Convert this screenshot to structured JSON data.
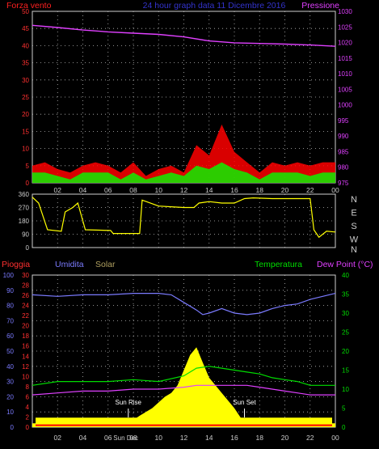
{
  "chart_data": [
    {
      "type": "line",
      "title": "24 hour graph data  11 Dicembre 2016",
      "left_axis_label": "Forza vento",
      "right_axis_label": "Pressione",
      "left_ticks": [
        "0",
        "5",
        "10",
        "15",
        "20",
        "25",
        "30",
        "35",
        "40",
        "45",
        "50"
      ],
      "right_ticks": [
        "975",
        "980",
        "985",
        "990",
        "995",
        "1000",
        "1005",
        "1010",
        "1015",
        "1020",
        "1025",
        "1030"
      ],
      "ylim_left": [
        0,
        50
      ],
      "ylim_right": [
        975,
        1030
      ],
      "x_ticks": [
        "02",
        "04",
        "06",
        "08",
        "10",
        "12",
        "14",
        "16",
        "18",
        "20",
        "22",
        "00"
      ],
      "series": [
        {
          "name": "Pressione",
          "color": "#e040ff",
          "x": [
            0,
            2,
            4,
            6,
            8,
            10,
            12,
            14,
            16,
            18,
            20,
            22,
            24
          ],
          "values": [
            1025.5,
            1024.8,
            1024.0,
            1023.4,
            1023.0,
            1022.6,
            1021.8,
            1020.5,
            1019.9,
            1019.7,
            1019.5,
            1019.2,
            1018.8
          ]
        },
        {
          "color": "#ff0000",
          "x": [
            0,
            1,
            2,
            3,
            4,
            5,
            6,
            7,
            8,
            9,
            10,
            11,
            12,
            13,
            14,
            15,
            16,
            17,
            18,
            19,
            20,
            21,
            22,
            23,
            24
          ],
          "values": [
            5,
            6,
            4,
            3,
            5,
            6,
            5,
            3,
            6,
            2,
            4,
            5,
            3,
            11,
            8,
            17,
            9,
            6,
            3,
            6,
            5,
            6,
            5,
            6,
            6
          ]
        },
        {
          "color": "#00ff00",
          "x": [
            0,
            1,
            2,
            3,
            4,
            5,
            6,
            7,
            8,
            9,
            10,
            11,
            12,
            13,
            14,
            15,
            16,
            17,
            18,
            19,
            20,
            21,
            22,
            23,
            24
          ],
          "values": [
            3,
            3,
            2,
            1,
            3,
            3,
            3,
            1,
            3,
            1,
            2,
            3,
            2,
            5,
            4,
            6,
            4,
            3,
            1,
            3,
            3,
            3,
            2,
            3,
            3
          ]
        }
      ]
    },
    {
      "type": "line",
      "left_ticks": [
        "0",
        "90",
        "180",
        "270",
        "360"
      ],
      "ylim": [
        0,
        360
      ],
      "direction_labels": [
        "N",
        "W",
        "S",
        "E",
        "N"
      ],
      "series": [
        {
          "color": "#ffff00",
          "x": [
            0,
            0.5,
            1.2,
            2.3,
            2.6,
            3.2,
            3.6,
            4.2,
            6.2,
            6.4,
            8.5,
            8.7,
            10.0,
            11.0,
            12.0,
            12.8,
            13.2,
            14.0,
            15.0,
            16.0,
            16.8,
            17.5,
            19.0,
            21.0,
            22.0,
            22.3,
            22.7,
            23.3,
            24.0
          ],
          "values": [
            340,
            300,
            120,
            110,
            240,
            270,
            300,
            120,
            115,
            95,
            95,
            320,
            280,
            275,
            270,
            270,
            300,
            310,
            300,
            300,
            330,
            335,
            330,
            330,
            330,
            120,
            70,
            110,
            105
          ]
        }
      ]
    },
    {
      "type": "line",
      "labels": {
        "pioggia": "Pioggia",
        "umidita": "Umidita",
        "solar": "Solar",
        "temperatura": "Temperatura",
        "dew_point": "Dew Point (°C)"
      },
      "left_ticks": [
        "0",
        "10",
        "20",
        "30",
        "40",
        "50",
        "60",
        "70",
        "80",
        "90",
        "100"
      ],
      "rain_ticks": [
        "0",
        "2",
        "4",
        "6",
        "8",
        "10",
        "12",
        "14",
        "16",
        "18",
        "20",
        "22",
        "24",
        "26",
        "28",
        "30"
      ],
      "right_ticks": [
        "0",
        "5",
        "10",
        "15",
        "20",
        "25",
        "30",
        "35",
        "40"
      ],
      "ylim_left": [
        0,
        100
      ],
      "ylim_right": [
        0,
        40
      ],
      "x_ticks": [
        "02",
        "04",
        "06",
        "08",
        "10",
        "12",
        "14",
        "16",
        "18",
        "20",
        "22",
        "00"
      ],
      "annotations": [
        {
          "text": "Sun Rise",
          "x": 7.6
        },
        {
          "text": "Sun Set",
          "x": 16.8
        },
        {
          "text": "Sun Dec",
          "x": 7.4
        }
      ],
      "series": [
        {
          "name": "Umidita",
          "color": "#7b7bff",
          "x": [
            0,
            2,
            4,
            6,
            8,
            10,
            11,
            12,
            13,
            13.5,
            14,
            15,
            16,
            17,
            18,
            19,
            20,
            21,
            22,
            23,
            24
          ],
          "values": [
            87,
            86,
            87,
            87,
            88,
            88,
            87,
            82,
            77,
            74,
            75,
            78,
            75,
            74,
            75,
            78,
            80,
            81,
            84,
            86,
            88
          ]
        },
        {
          "name": "Temperatura",
          "color": "#00dd00",
          "x": [
            0,
            2,
            4,
            6,
            8,
            10,
            12,
            13,
            14,
            15,
            16,
            17,
            18,
            19,
            20,
            21,
            22,
            23,
            24
          ],
          "values": [
            11,
            12,
            12,
            12,
            12.5,
            12,
            13.5,
            15.5,
            16,
            15.5,
            15,
            14.5,
            14,
            13,
            12.5,
            12,
            11,
            11,
            11
          ]
        },
        {
          "name": "Dew Point (°C)",
          "color": "#e040ff",
          "x": [
            0,
            2,
            4,
            6,
            8,
            10,
            12,
            13,
            14,
            15,
            16,
            17,
            18,
            19,
            20,
            21,
            22,
            23,
            24
          ],
          "values": [
            8.5,
            9,
            9.5,
            9.5,
            10,
            10,
            10.5,
            11,
            11,
            11,
            11,
            11,
            10.5,
            10,
            9.5,
            9,
            8.5,
            8.5,
            8.5
          ]
        },
        {
          "name": "Solar",
          "color": "#ffff00",
          "x": [
            0,
            7.6,
            8.5,
            9.5,
            10.5,
            11,
            11.5,
            12,
            12.5,
            13,
            13.5,
            14,
            14.5,
            15,
            15.5,
            16,
            16.8,
            24
          ],
          "values": [
            0,
            0,
            2,
            4,
            7,
            8,
            10,
            14,
            18,
            20,
            16,
            12,
            10,
            8,
            6,
            4,
            0,
            0
          ]
        },
        {
          "name": "Pioggia",
          "color": "#ff0000",
          "x": [
            0,
            24
          ],
          "values": [
            0,
            0
          ]
        }
      ]
    }
  ]
}
